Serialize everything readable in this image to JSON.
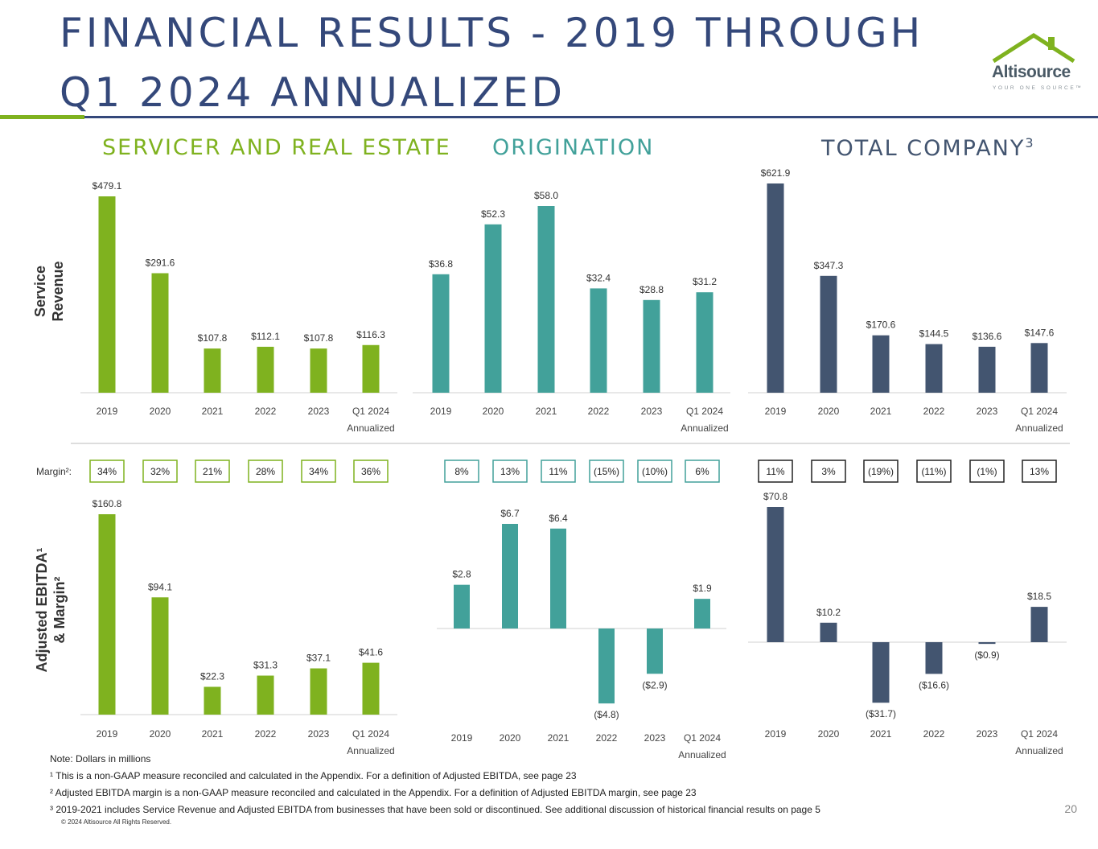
{
  "title": {
    "line1": "FINANCIAL RESULTS - 2019 THROUGH",
    "line2": "Q1 2024 ANNUALIZED"
  },
  "logo": {
    "name": "Altisource",
    "tagline": "YOUR ONE SOURCE™"
  },
  "colors": {
    "navy": "#34487a",
    "green": "#7fb21f",
    "teal": "#42a19a",
    "slate": "#435570"
  },
  "row_labels": {
    "service_revenue": [
      "Service",
      "Revenue"
    ],
    "ebitda": [
      "Adjusted EBITDA¹",
      "& Margin²"
    ]
  },
  "margin_label": "Margin²:",
  "sections": [
    {
      "title": "SERVICER AND REAL ESTATE",
      "superscript": ""
    },
    {
      "title": "ORIGINATION",
      "superscript": ""
    },
    {
      "title": "TOTAL COMPANY",
      "superscript": "3"
    }
  ],
  "footnotes": {
    "note": "Note: Dollars in millions",
    "fn1": "¹ This is a non-GAAP measure reconciled and calculated in the Appendix. For a definition of Adjusted EBITDA, see page 23",
    "fn2": "² Adjusted EBITDA margin is a non-GAAP measure reconciled and calculated in the Appendix. For a definition of Adjusted EBITDA margin, see page 23",
    "fn3": "³ 2019-2021 includes Service Revenue and Adjusted EBITDA from businesses that have been sold or discontinued.  See additional discussion of historical financial results on page 5",
    "copyright": "© 2024 Altisource All Rights Reserved.",
    "page_number": "20"
  },
  "chart_data": [
    {
      "type": "bar",
      "section": "SERVICER AND REAL ESTATE",
      "metric": "Service Revenue",
      "categories": [
        "2019",
        "2020",
        "2021",
        "2022",
        "2023",
        "Q1 2024 Annualized"
      ],
      "values": [
        479.1,
        291.6,
        107.8,
        112.1,
        107.8,
        116.3
      ],
      "labels": [
        "$479.1",
        "$291.6",
        "$107.8",
        "$112.1",
        "$107.8",
        "$116.3"
      ],
      "color": "#7fb21f"
    },
    {
      "type": "bar",
      "section": "ORIGINATION",
      "metric": "Service Revenue",
      "categories": [
        "2019",
        "2020",
        "2021",
        "2022",
        "2023",
        "Q1 2024 Annualized"
      ],
      "values": [
        36.8,
        52.3,
        58.0,
        32.4,
        28.8,
        31.2
      ],
      "labels": [
        "$36.8",
        "$52.3",
        "$58.0",
        "$32.4",
        "$28.8",
        "$31.2"
      ],
      "color": "#42a19a"
    },
    {
      "type": "bar",
      "section": "TOTAL COMPANY",
      "metric": "Service Revenue",
      "categories": [
        "2019",
        "2020",
        "2021",
        "2022",
        "2023",
        "Q1 2024 Annualized"
      ],
      "values": [
        621.9,
        347.3,
        170.6,
        144.5,
        136.6,
        147.6
      ],
      "labels": [
        "$621.9",
        "$347.3",
        "$170.6",
        "$144.5",
        "$136.6",
        "$147.6"
      ],
      "color": "#435570"
    },
    {
      "type": "bar",
      "section": "SERVICER AND REAL ESTATE",
      "metric": "Adjusted EBITDA",
      "categories": [
        "2019",
        "2020",
        "2021",
        "2022",
        "2023",
        "Q1 2024 Annualized"
      ],
      "values": [
        160.8,
        94.1,
        22.3,
        31.3,
        37.1,
        41.6
      ],
      "labels": [
        "$160.8",
        "$94.1",
        "$22.3",
        "$31.3",
        "$37.1",
        "$41.6"
      ],
      "margins": [
        "34%",
        "32%",
        "21%",
        "28%",
        "34%",
        "36%"
      ],
      "color": "#7fb21f"
    },
    {
      "type": "bar",
      "section": "ORIGINATION",
      "metric": "Adjusted EBITDA",
      "categories": [
        "2019",
        "2020",
        "2021",
        "2022",
        "2023",
        "Q1 2024 Annualized"
      ],
      "values": [
        2.8,
        6.7,
        6.4,
        -4.8,
        -2.9,
        1.9
      ],
      "labels": [
        "$2.8",
        "$6.7",
        "$6.4",
        "($4.8)",
        "($2.9)",
        "$1.9"
      ],
      "margins": [
        "8%",
        "13%",
        "11%",
        "(15%)",
        "(10%)",
        "6%"
      ],
      "color": "#42a19a"
    },
    {
      "type": "bar",
      "section": "TOTAL COMPANY",
      "metric": "Adjusted EBITDA",
      "categories": [
        "2019",
        "2020",
        "2021",
        "2022",
        "2023",
        "Q1 2024 Annualized"
      ],
      "values": [
        70.8,
        10.2,
        -31.7,
        -16.6,
        -0.9,
        18.5
      ],
      "labels": [
        "$70.8",
        "$10.2",
        "($31.7)",
        "($16.6)",
        "($0.9)",
        "$18.5"
      ],
      "margins": [
        "11%",
        "3%",
        "(19%)",
        "(11%)",
        "(1%)",
        "13%"
      ],
      "color": "#435570"
    }
  ]
}
